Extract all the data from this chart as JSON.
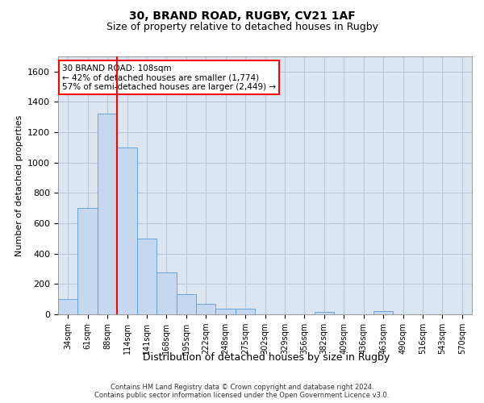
{
  "title1": "30, BRAND ROAD, RUGBY, CV21 1AF",
  "title2": "Size of property relative to detached houses in Rugby",
  "xlabel": "Distribution of detached houses by size in Rugby",
  "ylabel": "Number of detached properties",
  "footer1": "Contains HM Land Registry data © Crown copyright and database right 2024.",
  "footer2": "Contains public sector information licensed under the Open Government Licence v3.0.",
  "annotation_line1": "30 BRAND ROAD: 108sqm",
  "annotation_line2": "← 42% of detached houses are smaller (1,774)",
  "annotation_line3": "57% of semi-detached houses are larger (2,449) →",
  "bar_labels": [
    "34sqm",
    "61sqm",
    "88sqm",
    "114sqm",
    "141sqm",
    "168sqm",
    "195sqm",
    "222sqm",
    "248sqm",
    "275sqm",
    "302sqm",
    "329sqm",
    "356sqm",
    "382sqm",
    "409sqm",
    "436sqm",
    "463sqm",
    "490sqm",
    "516sqm",
    "543sqm",
    "570sqm"
  ],
  "bar_values": [
    100,
    700,
    1325,
    1100,
    500,
    275,
    135,
    70,
    35,
    35,
    0,
    0,
    0,
    15,
    0,
    0,
    20,
    0,
    0,
    0,
    0
  ],
  "bar_color": "#c5d8f0",
  "bar_edge_color": "#5b9bd5",
  "red_line_x": 2.5,
  "ylim": [
    0,
    1700
  ],
  "yticks": [
    0,
    200,
    400,
    600,
    800,
    1000,
    1200,
    1400,
    1600
  ],
  "grid_color": "#b8c8d8",
  "background_color": "#dce6f0",
  "annotation_box_color": "white",
  "annotation_box_edge": "red",
  "red_line_color": "red",
  "title1_fontsize": 10,
  "title2_fontsize": 9,
  "ylabel_fontsize": 8,
  "xlabel_fontsize": 9,
  "tick_fontsize": 7,
  "footer_fontsize": 6
}
